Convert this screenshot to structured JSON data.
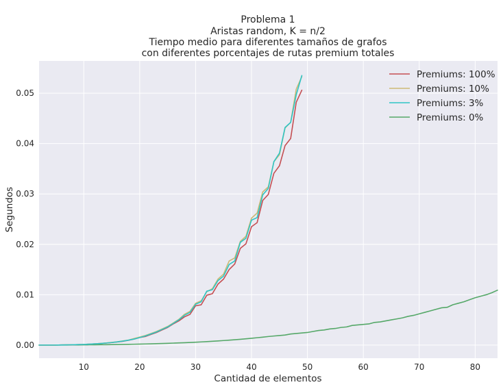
{
  "chart_data": {
    "type": "line",
    "title_lines": [
      "Problema 1",
      "Aristas random, K = n/2",
      "Tiempo medio para diferentes tamaños de grafos",
      "con diferentes porcentajes de rutas premium totales"
    ],
    "xlabel": "Cantidad de elementos",
    "ylabel": "Segundos",
    "xlim": [
      2,
      84
    ],
    "ylim": [
      -0.0026,
      0.0564
    ],
    "xticks": [
      10,
      20,
      30,
      40,
      50,
      60,
      70,
      80
    ],
    "yticks": [
      0.0,
      0.01,
      0.02,
      0.03,
      0.04,
      0.05
    ],
    "ytick_labels": [
      "0.00",
      "0.01",
      "0.02",
      "0.03",
      "0.04",
      "0.05"
    ],
    "grid": true,
    "legend_position": "top-right",
    "background_color": "#eaeaf2",
    "series": [
      {
        "name": "Premiums: 100%",
        "color": "#c44e52",
        "x": [
          2,
          3,
          4,
          5,
          6,
          7,
          8,
          9,
          10,
          11,
          12,
          13,
          14,
          15,
          16,
          17,
          18,
          19,
          20,
          21,
          22,
          23,
          24,
          25,
          26,
          27,
          28,
          29,
          30,
          31,
          32,
          33,
          34,
          35,
          36,
          37,
          38,
          39,
          40,
          41,
          42,
          43,
          44,
          45,
          46,
          47,
          48,
          49
        ],
        "values": [
          0.0,
          0.0,
          0.0,
          0.0,
          2e-05,
          4e-05,
          6e-05,
          9e-05,
          0.00013,
          0.00018,
          0.00024,
          0.00031,
          0.0004,
          0.0005,
          0.00062,
          0.00076,
          0.00095,
          0.0012,
          0.0015,
          0.0017,
          0.0021,
          0.0025,
          0.003,
          0.0035,
          0.0042,
          0.0048,
          0.0056,
          0.0061,
          0.0078,
          0.008,
          0.0099,
          0.0102,
          0.0121,
          0.0131,
          0.015,
          0.0161,
          0.0192,
          0.0201,
          0.0235,
          0.0243,
          0.0287,
          0.0299,
          0.0341,
          0.0356,
          0.0396,
          0.041,
          0.0482,
          0.0506
        ]
      },
      {
        "name": "Premiums: 10%",
        "color": "#ccb974",
        "x": [
          2,
          3,
          4,
          5,
          6,
          7,
          8,
          9,
          10,
          11,
          12,
          13,
          14,
          15,
          16,
          17,
          18,
          19,
          20,
          21,
          22,
          23,
          24,
          25,
          26,
          27,
          28,
          29,
          30,
          31,
          32,
          33,
          34,
          35,
          36,
          37,
          38,
          39,
          40,
          41,
          42,
          43,
          44,
          45,
          46,
          47,
          48,
          49
        ],
        "values": [
          0.0,
          0.0,
          0.0,
          0.0,
          2e-05,
          4e-05,
          6e-05,
          9e-05,
          0.00013,
          0.00018,
          0.00025,
          0.00032,
          0.00042,
          0.00053,
          0.00066,
          0.00082,
          0.001,
          0.0013,
          0.0016,
          0.0019,
          0.0023,
          0.0027,
          0.0032,
          0.0037,
          0.0044,
          0.0051,
          0.0061,
          0.0067,
          0.0083,
          0.0088,
          0.0106,
          0.0112,
          0.0131,
          0.0141,
          0.0167,
          0.0173,
          0.0206,
          0.0216,
          0.0252,
          0.0262,
          0.0304,
          0.0314,
          0.0364,
          0.0378,
          0.0431,
          0.0442,
          0.0508,
          0.0533
        ]
      },
      {
        "name": "Premiums: 3%",
        "color": "#2ec4c4",
        "x": [
          2,
          3,
          4,
          5,
          6,
          7,
          8,
          9,
          10,
          11,
          12,
          13,
          14,
          15,
          16,
          17,
          18,
          19,
          20,
          21,
          22,
          23,
          24,
          25,
          26,
          27,
          28,
          29,
          30,
          31,
          32,
          33,
          34,
          35,
          36,
          37,
          38,
          39,
          40,
          41,
          42,
          43,
          44,
          45,
          46,
          47,
          48,
          49
        ],
        "values": [
          0.0,
          0.0,
          0.0,
          0.0,
          2e-05,
          4e-05,
          6e-05,
          9e-05,
          0.00013,
          0.00018,
          0.00024,
          0.00031,
          0.00041,
          0.00051,
          0.00064,
          0.00079,
          0.00098,
          0.0012,
          0.0015,
          0.0018,
          0.0022,
          0.0026,
          0.0031,
          0.0036,
          0.0043,
          0.005,
          0.0059,
          0.0065,
          0.0081,
          0.0086,
          0.0107,
          0.011,
          0.0128,
          0.0137,
          0.016,
          0.0167,
          0.0204,
          0.0212,
          0.0248,
          0.0253,
          0.0298,
          0.0311,
          0.0364,
          0.0381,
          0.0432,
          0.0442,
          0.0497,
          0.0535
        ]
      },
      {
        "name": "Premiums: 0%",
        "color": "#55a868",
        "x": [
          2,
          3,
          4,
          5,
          6,
          7,
          8,
          9,
          10,
          11,
          12,
          13,
          14,
          15,
          16,
          17,
          18,
          19,
          20,
          21,
          22,
          23,
          24,
          25,
          26,
          27,
          28,
          29,
          30,
          31,
          32,
          33,
          34,
          35,
          36,
          37,
          38,
          39,
          40,
          41,
          42,
          43,
          44,
          45,
          46,
          47,
          48,
          49,
          50,
          51,
          52,
          53,
          54,
          55,
          56,
          57,
          58,
          59,
          60,
          61,
          62,
          63,
          64,
          65,
          66,
          67,
          68,
          69,
          70,
          71,
          72,
          73,
          74,
          75,
          76,
          77,
          78,
          79,
          80,
          81,
          82,
          83,
          84
        ],
        "values": [
          0.0,
          0.0,
          0.0,
          0.0,
          0.0,
          1e-05,
          2e-05,
          3e-05,
          4e-05,
          5e-05,
          6e-05,
          7e-05,
          8e-05,
          0.0001,
          0.00011,
          0.00013,
          0.00015,
          0.00017,
          0.00019,
          0.00022,
          0.00025,
          0.00028,
          0.00031,
          0.00035,
          0.00039,
          0.00043,
          0.00047,
          0.00052,
          0.00057,
          0.00063,
          0.00069,
          0.00076,
          0.00083,
          0.0009,
          0.00098,
          0.00106,
          0.00115,
          0.00125,
          0.00135,
          0.00146,
          0.00157,
          0.0017,
          0.0018,
          0.0019,
          0.002,
          0.0022,
          0.0023,
          0.0024,
          0.0025,
          0.0027,
          0.0029,
          0.003,
          0.0032,
          0.0033,
          0.0035,
          0.0036,
          0.0039,
          0.004,
          0.0041,
          0.0042,
          0.0045,
          0.0046,
          0.0048,
          0.005,
          0.0052,
          0.0054,
          0.0057,
          0.0059,
          0.0062,
          0.0065,
          0.0068,
          0.0071,
          0.0074,
          0.0075,
          0.008,
          0.0083,
          0.0086,
          0.009,
          0.0094,
          0.0097,
          0.01,
          0.0104,
          0.0109
        ]
      }
    ]
  }
}
